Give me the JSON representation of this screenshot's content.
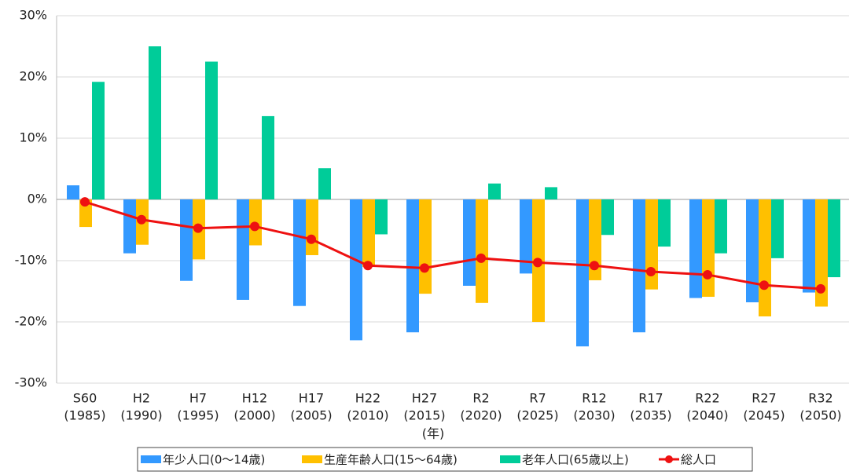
{
  "chart_data": {
    "type": "bar",
    "categories": [
      "S60",
      "H2",
      "H7",
      "H12",
      "H17",
      "H22",
      "H27",
      "R2",
      "R7",
      "R12",
      "R17",
      "R22",
      "R27",
      "R32"
    ],
    "category_years": [
      "(1985)",
      "(1990)",
      "(1995)",
      "(2000)",
      "(2005)",
      "(2010)",
      "(2015)",
      "(2020)",
      "(2025)",
      "(2030)",
      "(2035)",
      "(2040)",
      "(2045)",
      "(2050)"
    ],
    "x_label": "(年)",
    "series": [
      {
        "name": "年少人口(0～14歳)",
        "color": "#3399ff",
        "values": [
          2.3,
          -8.8,
          -13.3,
          -16.4,
          -17.4,
          -23,
          -21.7,
          -14.1,
          -12.1,
          -24,
          -21.7,
          -16.1,
          -16.8,
          -15.2
        ]
      },
      {
        "name": "生産年齢人口(15～64歳)",
        "color": "#ffc000",
        "values": [
          -4.5,
          -7.4,
          -9.8,
          -7.5,
          -9.1,
          -11,
          -15.4,
          -16.9,
          -20,
          -13.2,
          -14.7,
          -15.9,
          -19.1,
          -17.5
        ]
      },
      {
        "name": "老年人口(65歳以上)",
        "color": "#00cc99",
        "values": [
          19.2,
          25,
          22.5,
          13.6,
          5.1,
          -5.7,
          0,
          2.6,
          2.0,
          -5.8,
          -7.7,
          -8.8,
          -9.6,
          -12.7
        ]
      },
      {
        "name": "総人口",
        "type": "line",
        "color": "#ee1111",
        "values": [
          -0.4,
          -3.3,
          -4.7,
          -4.4,
          -6.5,
          -10.8,
          -11.2,
          -9.6,
          -10.3,
          -10.8,
          -11.8,
          -12.3,
          -14.0,
          -14.6
        ]
      }
    ],
    "ylim": [
      -30,
      30
    ],
    "yticks": [
      {
        "value": -30,
        "label": "-30%"
      },
      {
        "value": -20,
        "label": "-20%"
      },
      {
        "value": -10,
        "label": "-10%"
      },
      {
        "value": 0,
        "label": "0%"
      },
      {
        "value": 10,
        "label": "10%"
      },
      {
        "value": 20,
        "label": "20%"
      },
      {
        "value": 30,
        "label": "30%"
      }
    ],
    "grid": true,
    "legend": "bottom"
  }
}
